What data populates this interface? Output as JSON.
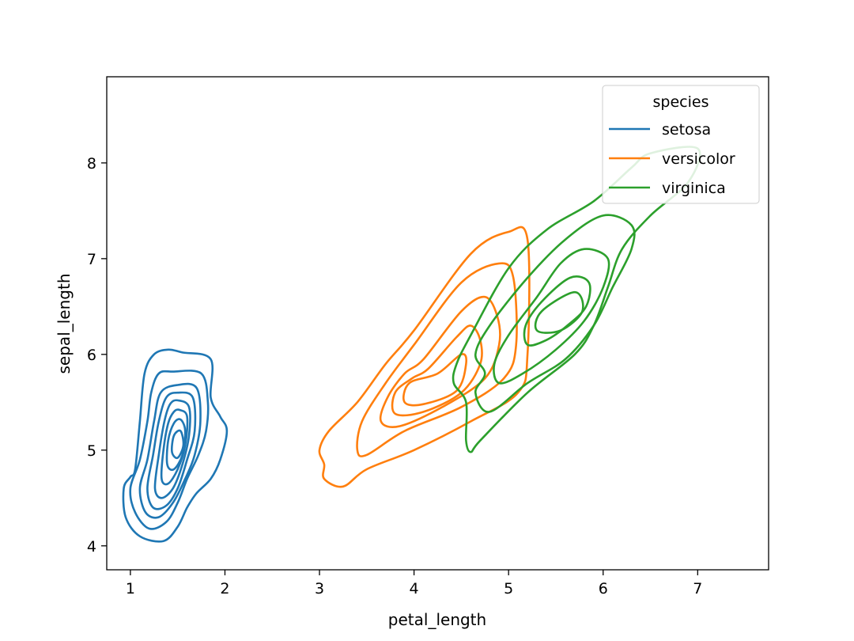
{
  "chart_data": {
    "type": "kde_contour",
    "xlabel": "petal_length",
    "ylabel": "sepal_length",
    "xlim": [
      0.75,
      7.75
    ],
    "ylim": [
      3.75,
      8.9
    ],
    "xticks": [
      1,
      2,
      3,
      4,
      5,
      6,
      7
    ],
    "yticks": [
      4,
      5,
      6,
      7,
      8
    ],
    "legend": {
      "title": "species",
      "position": "top-right"
    },
    "series": [
      {
        "name": "setosa",
        "color": "#1f77b4",
        "levels": [
          [
            [
              1.55,
              6.02
            ],
            [
              1.85,
              5.95
            ],
            [
              1.85,
              5.55
            ],
            [
              1.95,
              5.35
            ],
            [
              2.02,
              5.2
            ],
            [
              1.95,
              4.9
            ],
            [
              1.85,
              4.7
            ],
            [
              1.7,
              4.55
            ],
            [
              1.6,
              4.4
            ],
            [
              1.5,
              4.2
            ],
            [
              1.35,
              4.05
            ],
            [
              1.1,
              4.1
            ],
            [
              0.95,
              4.3
            ],
            [
              0.93,
              4.6
            ],
            [
              1.0,
              4.72
            ],
            [
              1.05,
              4.8
            ],
            [
              1.1,
              5.3
            ],
            [
              1.15,
              5.8
            ],
            [
              1.25,
              6.0
            ],
            [
              1.4,
              6.05
            ]
          ],
          [
            [
              1.45,
              5.82
            ],
            [
              1.75,
              5.8
            ],
            [
              1.82,
              5.5
            ],
            [
              1.8,
              5.2
            ],
            [
              1.72,
              4.95
            ],
            [
              1.6,
              4.7
            ],
            [
              1.5,
              4.45
            ],
            [
              1.38,
              4.25
            ],
            [
              1.2,
              4.18
            ],
            [
              1.05,
              4.35
            ],
            [
              1.0,
              4.6
            ],
            [
              1.1,
              4.9
            ],
            [
              1.18,
              5.3
            ],
            [
              1.22,
              5.6
            ],
            [
              1.3,
              5.8
            ]
          ],
          [
            [
              1.5,
              5.68
            ],
            [
              1.7,
              5.65
            ],
            [
              1.74,
              5.3
            ],
            [
              1.68,
              4.95
            ],
            [
              1.58,
              4.7
            ],
            [
              1.45,
              4.45
            ],
            [
              1.3,
              4.3
            ],
            [
              1.16,
              4.35
            ],
            [
              1.1,
              4.6
            ],
            [
              1.18,
              4.9
            ],
            [
              1.25,
              5.3
            ],
            [
              1.32,
              5.6
            ]
          ],
          [
            [
              1.5,
              5.6
            ],
            [
              1.66,
              5.55
            ],
            [
              1.68,
              5.2
            ],
            [
              1.6,
              4.9
            ],
            [
              1.5,
              4.6
            ],
            [
              1.38,
              4.42
            ],
            [
              1.24,
              4.4
            ],
            [
              1.18,
              4.6
            ],
            [
              1.24,
              4.95
            ],
            [
              1.3,
              5.3
            ],
            [
              1.38,
              5.55
            ]
          ],
          [
            [
              1.5,
              5.52
            ],
            [
              1.62,
              5.45
            ],
            [
              1.62,
              5.15
            ],
            [
              1.55,
              4.85
            ],
            [
              1.45,
              4.6
            ],
            [
              1.33,
              4.5
            ],
            [
              1.26,
              4.6
            ],
            [
              1.3,
              4.95
            ],
            [
              1.36,
              5.3
            ],
            [
              1.42,
              5.48
            ]
          ],
          [
            [
              1.52,
              5.42
            ],
            [
              1.6,
              5.35
            ],
            [
              1.58,
              5.05
            ],
            [
              1.5,
              4.8
            ],
            [
              1.4,
              4.65
            ],
            [
              1.33,
              4.7
            ],
            [
              1.35,
              5.0
            ],
            [
              1.4,
              5.28
            ],
            [
              1.46,
              5.4
            ]
          ],
          [
            [
              1.53,
              5.32
            ],
            [
              1.58,
              5.2
            ],
            [
              1.55,
              4.95
            ],
            [
              1.46,
              4.8
            ],
            [
              1.39,
              4.85
            ],
            [
              1.4,
              5.1
            ],
            [
              1.46,
              5.28
            ]
          ],
          [
            [
              1.53,
              5.2
            ],
            [
              1.56,
              5.05
            ],
            [
              1.5,
              4.92
            ],
            [
              1.44,
              4.98
            ],
            [
              1.46,
              5.15
            ]
          ]
        ]
      },
      {
        "name": "versicolor",
        "color": "#ff7f0e",
        "levels": [
          [
            [
              4.0,
              6.25
            ],
            [
              4.6,
              7.05
            ],
            [
              5.0,
              7.28
            ],
            [
              5.2,
              7.2
            ],
            [
              5.2,
              6.0
            ],
            [
              5.1,
              5.6
            ],
            [
              4.6,
              5.3
            ],
            [
              4.0,
              5.0
            ],
            [
              3.5,
              4.8
            ],
            [
              3.25,
              4.62
            ],
            [
              3.05,
              4.7
            ],
            [
              3.05,
              4.85
            ],
            [
              3.0,
              5.0
            ],
            [
              3.1,
              5.2
            ],
            [
              3.4,
              5.5
            ],
            [
              3.7,
              5.9
            ]
          ],
          [
            [
              4.0,
              6.1
            ],
            [
              4.5,
              6.75
            ],
            [
              4.9,
              6.95
            ],
            [
              5.05,
              6.8
            ],
            [
              5.08,
              6.1
            ],
            [
              4.95,
              5.75
            ],
            [
              4.5,
              5.45
            ],
            [
              3.9,
              5.2
            ],
            [
              3.5,
              4.95
            ],
            [
              3.4,
              5.0
            ],
            [
              3.45,
              5.3
            ],
            [
              3.7,
              5.7
            ]
          ],
          [
            [
              4.1,
              5.95
            ],
            [
              4.5,
              6.45
            ],
            [
              4.75,
              6.6
            ],
            [
              4.88,
              6.4
            ],
            [
              4.9,
              6.1
            ],
            [
              4.75,
              5.75
            ],
            [
              4.3,
              5.45
            ],
            [
              3.85,
              5.25
            ],
            [
              3.65,
              5.3
            ],
            [
              3.72,
              5.55
            ],
            [
              3.9,
              5.8
            ]
          ],
          [
            [
              4.15,
              5.85
            ],
            [
              4.45,
              6.18
            ],
            [
              4.6,
              6.3
            ],
            [
              4.7,
              6.15
            ],
            [
              4.7,
              5.9
            ],
            [
              4.5,
              5.6
            ],
            [
              4.1,
              5.4
            ],
            [
              3.8,
              5.38
            ],
            [
              3.8,
              5.6
            ],
            [
              3.98,
              5.75
            ]
          ],
          [
            [
              4.25,
              5.8
            ],
            [
              4.5,
              6.0
            ],
            [
              4.55,
              5.9
            ],
            [
              4.45,
              5.62
            ],
            [
              4.1,
              5.48
            ],
            [
              3.9,
              5.5
            ],
            [
              3.95,
              5.7
            ]
          ]
        ]
      },
      {
        "name": "virginica",
        "color": "#2ca02c",
        "levels": [
          [
            [
              6.5,
              8.1
            ],
            [
              7.0,
              8.15
            ],
            [
              6.9,
              7.8
            ],
            [
              6.5,
              7.45
            ],
            [
              6.2,
              7.1
            ],
            [
              6.05,
              6.7
            ],
            [
              5.9,
              6.3
            ],
            [
              5.7,
              6.0
            ],
            [
              5.2,
              5.6
            ],
            [
              4.7,
              5.1
            ],
            [
              4.6,
              4.98
            ],
            [
              4.55,
              5.1
            ],
            [
              4.55,
              5.5
            ],
            [
              4.42,
              5.7
            ],
            [
              4.45,
              5.9
            ],
            [
              4.6,
              6.2
            ],
            [
              5.0,
              6.9
            ],
            [
              5.4,
              7.3
            ],
            [
              5.9,
              7.6
            ],
            [
              6.3,
              7.95
            ]
          ],
          [
            [
              6.0,
              7.45
            ],
            [
              6.3,
              7.35
            ],
            [
              6.3,
              7.1
            ],
            [
              6.1,
              6.7
            ],
            [
              5.9,
              6.3
            ],
            [
              5.6,
              5.95
            ],
            [
              5.2,
              5.7
            ],
            [
              4.8,
              5.4
            ],
            [
              4.65,
              5.6
            ],
            [
              4.75,
              5.8
            ],
            [
              4.65,
              6.0
            ],
            [
              4.8,
              6.3
            ],
            [
              5.2,
              6.8
            ],
            [
              5.6,
              7.2
            ]
          ],
          [
            [
              5.8,
              7.1
            ],
            [
              6.05,
              7.0
            ],
            [
              6.0,
              6.7
            ],
            [
              5.8,
              6.35
            ],
            [
              5.5,
              6.05
            ],
            [
              5.15,
              5.8
            ],
            [
              4.9,
              5.7
            ],
            [
              4.85,
              5.9
            ],
            [
              5.0,
              6.2
            ],
            [
              5.3,
              6.6
            ],
            [
              5.55,
              6.95
            ]
          ],
          [
            [
              5.65,
              6.8
            ],
            [
              5.85,
              6.75
            ],
            [
              5.82,
              6.5
            ],
            [
              5.62,
              6.3
            ],
            [
              5.4,
              6.15
            ],
            [
              5.2,
              6.1
            ],
            [
              5.18,
              6.3
            ],
            [
              5.35,
              6.55
            ]
          ],
          [
            [
              5.7,
              6.65
            ],
            [
              5.78,
              6.45
            ],
            [
              5.55,
              6.25
            ],
            [
              5.3,
              6.25
            ],
            [
              5.35,
              6.45
            ]
          ]
        ]
      }
    ]
  }
}
